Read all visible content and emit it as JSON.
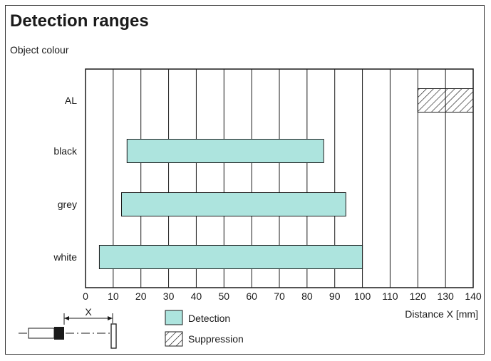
{
  "title": "Detection ranges",
  "ylabel": "Object colour",
  "xlabel": "Distance X [mm]",
  "sensor_label": "X",
  "chart_data": {
    "type": "bar",
    "orientation": "horizontal",
    "categories": [
      "AL",
      "black",
      "grey",
      "white"
    ],
    "xlim": [
      0,
      140
    ],
    "xticks": [
      0,
      10,
      20,
      30,
      40,
      50,
      60,
      70,
      80,
      90,
      100,
      110,
      120,
      130,
      140
    ],
    "grid": true,
    "series": [
      {
        "name": "Detection",
        "color": "#ade4de",
        "pattern": "solid",
        "ranges": [
          {
            "category": "black",
            "start": 15,
            "end": 86
          },
          {
            "category": "grey",
            "start": 13,
            "end": 94
          },
          {
            "category": "white",
            "start": 5,
            "end": 100
          }
        ]
      },
      {
        "name": "Suppression",
        "color": "#ffffff",
        "pattern": "hatch",
        "ranges": [
          {
            "category": "AL",
            "start": 120,
            "end": 140
          }
        ]
      }
    ],
    "legend_position": "bottom-center"
  }
}
